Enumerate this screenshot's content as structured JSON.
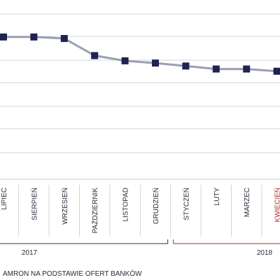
{
  "chart_data": {
    "type": "line",
    "categories": [
      "LIPIEC",
      "SIERPIEŃ",
      "WRZESIEŃ",
      "PAŹDZIERNIK",
      "LISTOPAD",
      "GRUDZIEŃ",
      "STYCZEŃ",
      "LUTY",
      "MARZEC",
      "KWIECIEŃ"
    ],
    "series": [
      {
        "values": [
          95.5,
          95.5,
          94.5,
          83.0,
          79.5,
          78.0,
          76.0,
          74.0,
          74.0,
          72.5
        ]
      }
    ],
    "ylim": [
      0,
      110
    ],
    "grid": true,
    "year_groups": [
      {
        "label": "2017",
        "from": 0,
        "to": 5
      },
      {
        "label": "2018",
        "from": 6,
        "to": 9
      }
    ],
    "highlight_category": "KWIECIEŃ",
    "source_note": "AMRON NA PODSTAWIE OFERT BANKÓW",
    "colors": {
      "line": "#9a9fb3",
      "marker": "#1f2350",
      "grid": "#c4c7d2",
      "axis_text": "#2a2a3a",
      "highlight_text": "#b22a2a",
      "bracket_2018": "#b22a2a",
      "bracket_2017": "#333333"
    }
  }
}
